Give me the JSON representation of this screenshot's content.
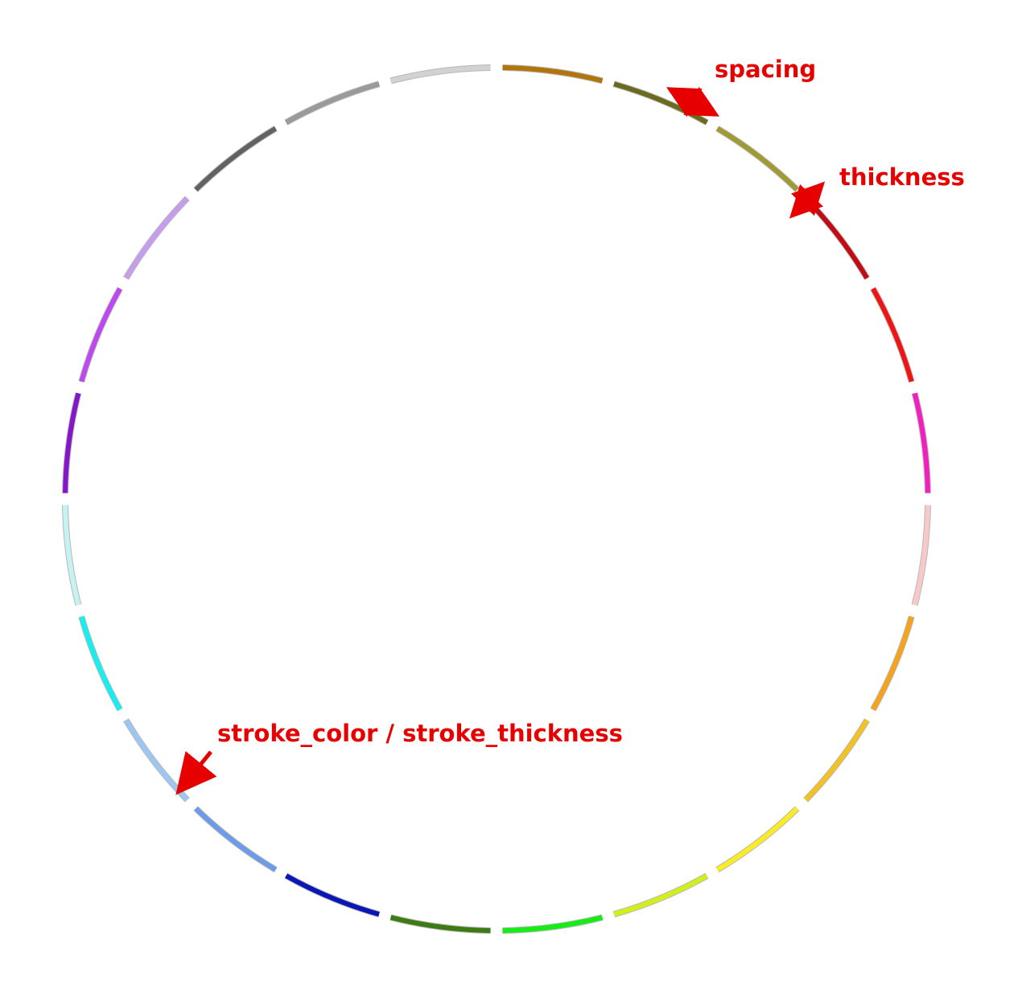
{
  "diagram": {
    "segments": [
      {
        "color": "#b0760d"
      },
      {
        "color": "#6a6b1d"
      },
      {
        "color": "#a09a32"
      },
      {
        "color": "#c10c16"
      },
      {
        "color": "#ef1515"
      },
      {
        "color": "#f21fbf"
      },
      {
        "color": "#f9c9c9"
      },
      {
        "color": "#f5a31d"
      },
      {
        "color": "#f2c122"
      },
      {
        "color": "#f9ec24"
      },
      {
        "color": "#d3ee1d"
      },
      {
        "color": "#16ed16"
      },
      {
        "color": "#3c7c12"
      },
      {
        "color": "#0b16b6"
      },
      {
        "color": "#6d9bea"
      },
      {
        "color": "#9dc6f0"
      },
      {
        "color": "#16eef0"
      },
      {
        "color": "#c5f3f2"
      },
      {
        "color": "#8617c8"
      },
      {
        "color": "#bd48ef"
      },
      {
        "color": "#c69cee"
      },
      {
        "color": "#626262"
      },
      {
        "color": "#9a9a9a"
      },
      {
        "color": "#d2d2d2"
      }
    ],
    "annotations": {
      "spacing": "spacing",
      "thickness": "thickness",
      "stroke": "stroke_color / stroke_thickness"
    },
    "annotation_color": "#e60000"
  }
}
